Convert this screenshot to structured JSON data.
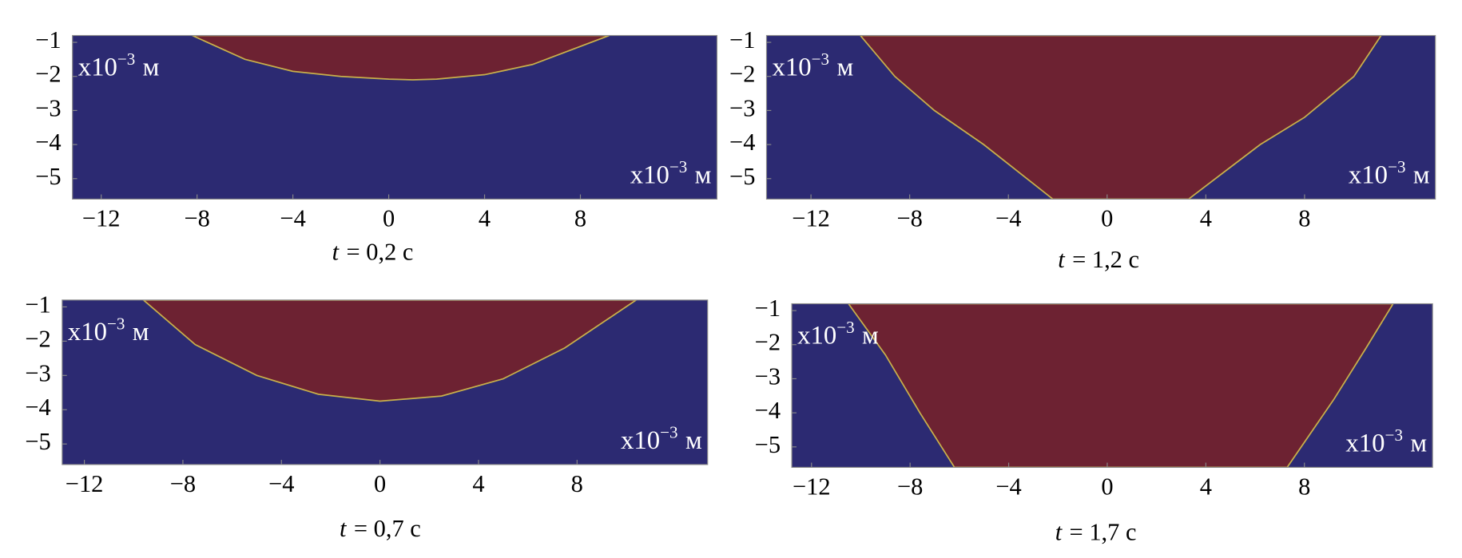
{
  "chart_data": [
    {
      "type": "phase-field",
      "title_var": "t",
      "title": "= 0,2 с",
      "unit_label": {
        "base": "x10",
        "exponent": "−3",
        "unit": "м"
      },
      "background": "#2c2a72",
      "boundary": {
        "color": "#6d2232",
        "x": [
          -8.2,
          -6,
          -4,
          -2,
          0,
          1,
          2,
          4,
          6,
          9.2
        ],
        "y": [
          -0.8,
          -1.5,
          -1.85,
          -2.0,
          -2.08,
          -2.1,
          -2.08,
          -1.95,
          -1.65,
          -0.8
        ]
      },
      "xlim": [
        -13.2,
        13.7
      ],
      "ylim": [
        -5.6,
        -0.8
      ],
      "xticks": [
        {
          "value": -12,
          "label": "−12"
        },
        {
          "value": -8,
          "label": "−8"
        },
        {
          "value": -4,
          "label": "−4"
        },
        0,
        4,
        8
      ],
      "yticks": [
        {
          "value": -1,
          "label": "−1"
        },
        {
          "value": -2,
          "label": "−2"
        },
        {
          "value": -3,
          "label": "−3"
        },
        {
          "value": -4,
          "label": "−4"
        },
        {
          "value": -5,
          "label": "−5"
        }
      ]
    },
    {
      "type": "phase-field",
      "title_var": "t",
      "title": "= 1,2 с",
      "unit_label": {
        "base": "x10",
        "exponent": "−3",
        "unit": "м"
      },
      "background": "#2c2a72",
      "boundary": {
        "color": "#6d2232",
        "x": [
          -10.0,
          -8.6,
          -7.0,
          -5.0,
          -2.2,
          3.3,
          6.2,
          8.0,
          10.0,
          11.1
        ],
        "y": [
          -0.8,
          -2.0,
          -3.0,
          -4.0,
          -5.6,
          -5.6,
          -4.0,
          -3.2,
          -2.0,
          -0.8
        ]
      },
      "xlim": [
        -13.8,
        13.3
      ],
      "ylim": [
        -5.6,
        -0.8
      ],
      "xticks": [
        {
          "value": -12,
          "label": "−12"
        },
        {
          "value": -8,
          "label": "−8"
        },
        {
          "value": -4,
          "label": "−4"
        },
        0,
        4,
        8
      ],
      "yticks": [
        {
          "value": -1,
          "label": "−1"
        },
        {
          "value": -2,
          "label": "−2"
        },
        {
          "value": -3,
          "label": "−3"
        },
        {
          "value": -4,
          "label": "−4"
        },
        {
          "value": -5,
          "label": "−5"
        }
      ]
    },
    {
      "type": "phase-field",
      "title_var": "t",
      "title": "= 0,7 с",
      "unit_label": {
        "base": "x10",
        "exponent": "−3",
        "unit": "м"
      },
      "background": "#2c2a72",
      "boundary": {
        "color": "#6d2232",
        "x": [
          -9.6,
          -7.5,
          -5,
          -2.5,
          0,
          2.5,
          5,
          7.5,
          10.4
        ],
        "y": [
          -0.8,
          -2.1,
          -3.0,
          -3.55,
          -3.75,
          -3.6,
          -3.1,
          -2.2,
          -0.8
        ]
      },
      "xlim": [
        -12.9,
        13.3
      ],
      "ylim": [
        -5.6,
        -0.8
      ],
      "xticks": [
        {
          "value": -12,
          "label": "−12"
        },
        {
          "value": -8,
          "label": "−8"
        },
        {
          "value": -4,
          "label": "−4"
        },
        0,
        4,
        8
      ],
      "yticks": [
        {
          "value": -1,
          "label": "−1"
        },
        {
          "value": -2,
          "label": "−2"
        },
        {
          "value": -3,
          "label": "−3"
        },
        {
          "value": -4,
          "label": "−4"
        },
        {
          "value": -5,
          "label": "−5"
        }
      ]
    },
    {
      "type": "phase-field",
      "title_var": "t",
      "title": "= 1,7 с",
      "unit_label": {
        "base": "x10",
        "exponent": "−3",
        "unit": "м"
      },
      "background": "#2c2a72",
      "boundary": {
        "color": "#6d2232",
        "x": [
          -10.5,
          -9.0,
          -7.6,
          -6.2,
          7.3,
          9.2,
          10.5,
          11.6
        ],
        "y": [
          -0.8,
          -2.3,
          -4.0,
          -5.6,
          -5.6,
          -3.6,
          -2.1,
          -0.8
        ]
      },
      "xlim": [
        -12.8,
        13.2
      ],
      "ylim": [
        -5.6,
        -0.8
      ],
      "xticks": [
        {
          "value": -12,
          "label": "−12"
        },
        {
          "value": -8,
          "label": "−8"
        },
        {
          "value": -4,
          "label": "−4"
        },
        0,
        4,
        8
      ],
      "yticks": [
        {
          "value": -1,
          "label": "−1"
        },
        {
          "value": -2,
          "label": "−2"
        },
        {
          "value": -3,
          "label": "−3"
        },
        {
          "value": -4,
          "label": "−4"
        },
        {
          "value": -5,
          "label": "−5"
        }
      ]
    }
  ]
}
